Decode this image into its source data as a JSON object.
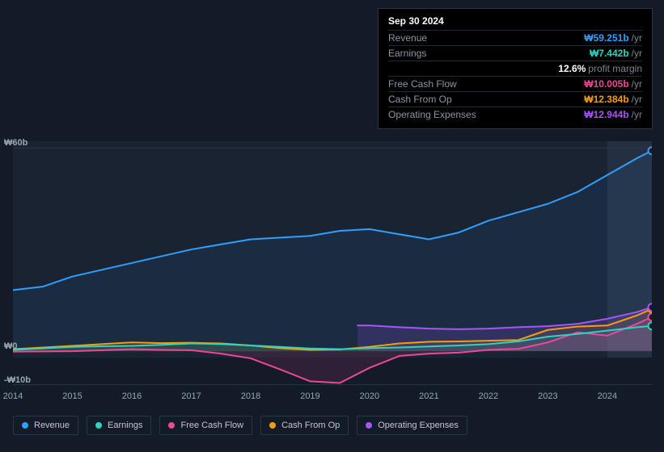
{
  "tooltip": {
    "date": "Sep 30 2024",
    "rows": [
      {
        "label": "Revenue",
        "value": "₩59.251b",
        "unit": "/yr",
        "color": "#2e9fff"
      },
      {
        "label": "Earnings",
        "value": "₩7.442b",
        "unit": "/yr",
        "color": "#2dd4bf"
      },
      {
        "label": "",
        "value": "12.6%",
        "unit": "profit margin",
        "color": "#ffffff"
      },
      {
        "label": "Free Cash Flow",
        "value": "₩10.005b",
        "unit": "/yr",
        "color": "#ec4899"
      },
      {
        "label": "Cash From Op",
        "value": "₩12.384b",
        "unit": "/yr",
        "color": "#f59e0b"
      },
      {
        "label": "Operating Expenses",
        "value": "₩12.944b",
        "unit": "/yr",
        "color": "#a855f7"
      }
    ]
  },
  "chart": {
    "type": "line-area",
    "background_color": "#131b29",
    "plot_bg_color": "#1a2332",
    "grid_color": "#2a3544",
    "label_color": "#9aa4b2",
    "ylim": [
      -12,
      62
    ],
    "yticks": [
      {
        "v": 60,
        "label": "₩60b"
      },
      {
        "v": 0,
        "label": "₩0"
      },
      {
        "v": -10,
        "label": "-₩10b"
      }
    ],
    "xlim": [
      2014,
      2024.75
    ],
    "xticks": [
      2014,
      2015,
      2016,
      2017,
      2018,
      2019,
      2020,
      2021,
      2022,
      2023,
      2024
    ],
    "highlight_from_x": 2024,
    "highlight_color": "#243041",
    "series": [
      {
        "name": "Revenue",
        "color": "#2e9fff",
        "fill": "rgba(46,159,255,0.08)",
        "data": [
          [
            2014,
            18
          ],
          [
            2014.5,
            19
          ],
          [
            2015,
            22
          ],
          [
            2015.5,
            24
          ],
          [
            2016,
            26
          ],
          [
            2016.5,
            28
          ],
          [
            2017,
            30
          ],
          [
            2017.5,
            31.5
          ],
          [
            2018,
            33
          ],
          [
            2018.5,
            33.5
          ],
          [
            2019,
            34
          ],
          [
            2019.5,
            35.5
          ],
          [
            2020,
            36
          ],
          [
            2020.5,
            34.5
          ],
          [
            2021,
            33
          ],
          [
            2021.5,
            35
          ],
          [
            2022,
            38.5
          ],
          [
            2022.5,
            41
          ],
          [
            2023,
            43.5
          ],
          [
            2023.5,
            47
          ],
          [
            2024,
            52
          ],
          [
            2024.5,
            57
          ],
          [
            2024.75,
            59.2
          ]
        ]
      },
      {
        "name": "Earnings",
        "color": "#2dd4bf",
        "fill": "rgba(45,212,191,0.12)",
        "data": [
          [
            2014,
            0.3
          ],
          [
            2015,
            1.2
          ],
          [
            2016,
            1.5
          ],
          [
            2016.5,
            1.8
          ],
          [
            2017,
            2.2
          ],
          [
            2017.5,
            2.0
          ],
          [
            2018,
            1.6
          ],
          [
            2018.5,
            1.2
          ],
          [
            2019,
            0.7
          ],
          [
            2019.5,
            0.5
          ],
          [
            2020,
            0.8
          ],
          [
            2020.5,
            1.0
          ],
          [
            2021,
            1.3
          ],
          [
            2021.5,
            1.6
          ],
          [
            2022,
            2.0
          ],
          [
            2022.5,
            2.8
          ],
          [
            2023,
            4.2
          ],
          [
            2023.5,
            5.0
          ],
          [
            2024,
            6.0
          ],
          [
            2024.5,
            7.0
          ],
          [
            2024.75,
            7.4
          ]
        ]
      },
      {
        "name": "Free Cash Flow",
        "color": "#ec4899",
        "fill": "rgba(236,72,153,0.12)",
        "data": [
          [
            2014,
            -0.2
          ],
          [
            2015,
            -0.1
          ],
          [
            2016,
            0.5
          ],
          [
            2016.5,
            0.3
          ],
          [
            2017,
            0.2
          ],
          [
            2017.5,
            -0.8
          ],
          [
            2018,
            -2.2
          ],
          [
            2018.5,
            -5.5
          ],
          [
            2019,
            -9.0
          ],
          [
            2019.5,
            -9.5
          ],
          [
            2020,
            -5.0
          ],
          [
            2020.5,
            -1.5
          ],
          [
            2021,
            -0.8
          ],
          [
            2021.5,
            -0.5
          ],
          [
            2022,
            0.3
          ],
          [
            2022.5,
            0.6
          ],
          [
            2023,
            2.5
          ],
          [
            2023.5,
            5.5
          ],
          [
            2024,
            4.5
          ],
          [
            2024.5,
            8.0
          ],
          [
            2024.75,
            10.0
          ]
        ]
      },
      {
        "name": "Cash From Op",
        "color": "#f59e0b",
        "fill": "rgba(245,158,11,0.10)",
        "data": [
          [
            2014,
            0.5
          ],
          [
            2015,
            1.5
          ],
          [
            2016,
            2.5
          ],
          [
            2016.5,
            2.3
          ],
          [
            2017,
            2.4
          ],
          [
            2017.5,
            2.2
          ],
          [
            2018,
            1.6
          ],
          [
            2018.5,
            0.8
          ],
          [
            2019,
            0.3
          ],
          [
            2019.5,
            0.4
          ],
          [
            2020,
            1.2
          ],
          [
            2020.5,
            2.2
          ],
          [
            2021,
            2.7
          ],
          [
            2021.5,
            2.8
          ],
          [
            2022,
            3.0
          ],
          [
            2022.5,
            3.2
          ],
          [
            2023,
            6.2
          ],
          [
            2023.5,
            7.2
          ],
          [
            2024,
            7.5
          ],
          [
            2024.5,
            10.5
          ],
          [
            2024.75,
            12.4
          ]
        ]
      },
      {
        "name": "Operating Expenses",
        "color": "#a855f7",
        "fill": "rgba(168,85,247,0.16)",
        "data": [
          [
            2019.8,
            7.5
          ],
          [
            2020,
            7.5
          ],
          [
            2020.5,
            7.0
          ],
          [
            2021,
            6.6
          ],
          [
            2021.5,
            6.4
          ],
          [
            2022,
            6.6
          ],
          [
            2022.5,
            7.0
          ],
          [
            2023,
            7.3
          ],
          [
            2023.5,
            8.0
          ],
          [
            2024,
            9.5
          ],
          [
            2024.5,
            11.5
          ],
          [
            2024.75,
            12.9
          ]
        ]
      }
    ],
    "legend": [
      {
        "label": "Revenue",
        "color": "#2e9fff"
      },
      {
        "label": "Earnings",
        "color": "#2dd4bf"
      },
      {
        "label": "Free Cash Flow",
        "color": "#ec4899"
      },
      {
        "label": "Cash From Op",
        "color": "#f59e0b"
      },
      {
        "label": "Operating Expenses",
        "color": "#a855f7"
      }
    ]
  }
}
